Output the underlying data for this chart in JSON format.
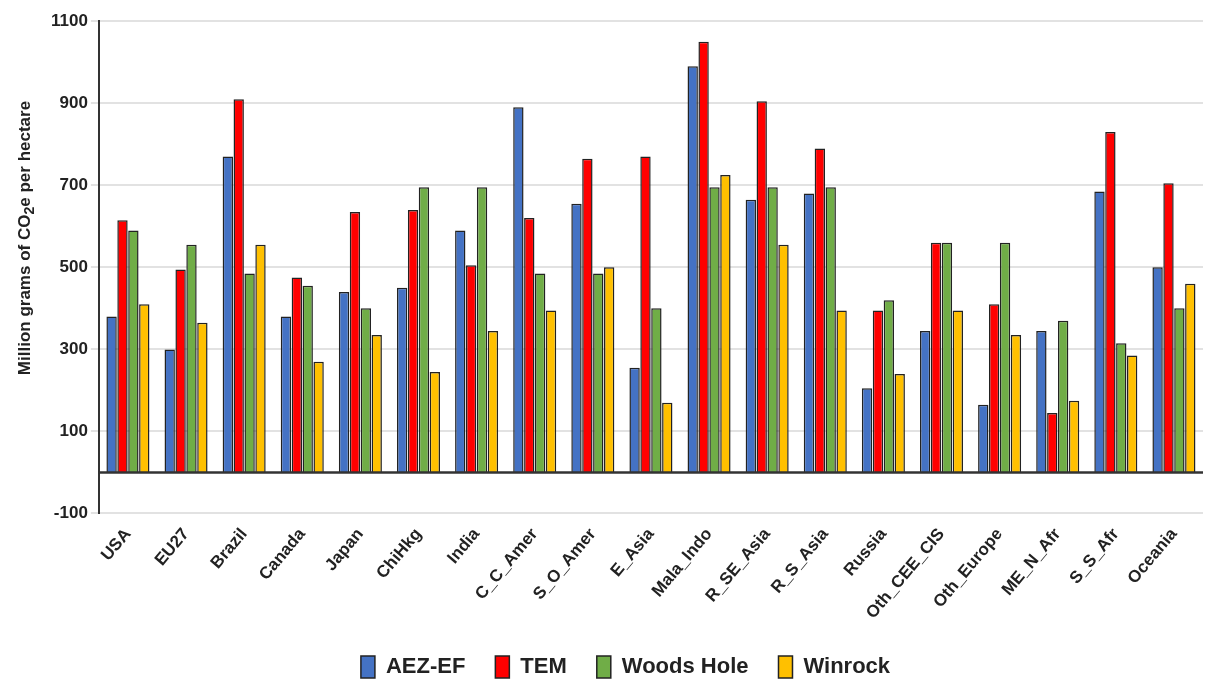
{
  "chart_data": {
    "type": "bar",
    "ylabel": "Million grams of CO$_{2}$e per hectare",
    "categories": [
      "USA",
      "EU27",
      "Brazil",
      "Canada",
      "Japan",
      "ChiHkg",
      "India",
      "C_C_Amer",
      "S_O_Amer",
      "E_Asia",
      "Mala_Indo",
      "R_SE_Asia",
      "R_S_Asia",
      "Russia",
      "Oth_CEE_CIS",
      "Oth_Europe",
      "ME_N_Afr",
      "S_S_Afr",
      "Oceania"
    ],
    "series": [
      {
        "name": "AEZ-EF",
        "color": "#4472c4",
        "values": [
          380,
          300,
          770,
          380,
          440,
          450,
          590,
          890,
          655,
          255,
          990,
          665,
          680,
          205,
          345,
          165,
          345,
          685,
          500
        ]
      },
      {
        "name": "TEM",
        "color": "#ff0000",
        "values": [
          615,
          495,
          910,
          475,
          635,
          640,
          505,
          620,
          765,
          770,
          1050,
          905,
          790,
          395,
          560,
          410,
          145,
          830,
          705
        ]
      },
      {
        "name": "Woods Hole",
        "color": "#70ad47",
        "values": [
          590,
          555,
          485,
          455,
          400,
          695,
          695,
          485,
          485,
          400,
          695,
          695,
          695,
          420,
          560,
          560,
          370,
          315,
          400
        ]
      },
      {
        "name": "Winrock",
        "color": "#ffc000",
        "values": [
          410,
          365,
          555,
          270,
          335,
          245,
          345,
          395,
          500,
          170,
          725,
          555,
          395,
          240,
          395,
          335,
          175,
          285,
          460
        ]
      }
    ],
    "ylim": [
      -100,
      1100
    ],
    "yticks": [
      -100,
      100,
      300,
      500,
      700,
      900,
      1100
    ],
    "grid": "y",
    "legend": "bottom"
  }
}
